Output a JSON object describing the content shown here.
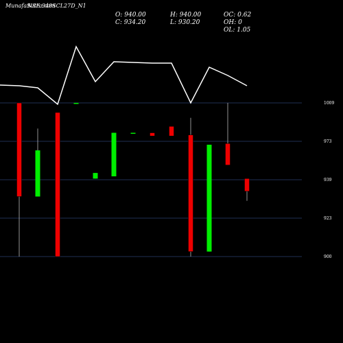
{
  "header": {
    "brand": "MunafaSutra.com",
    "symbol": "NSE 948SCL27D_N1"
  },
  "ohlc": {
    "open": "O: 940.00",
    "high": "H: 940.00",
    "oc": "OC: 0.62",
    "close": "C: 934.20",
    "low": "L: 930.20",
    "oh": "OH: 0",
    "ol": "OL: 1.05"
  },
  "colors": {
    "up": "#00ee00",
    "down": "#ee0000",
    "grid": "#1f2f55",
    "line": "#ffffff"
  },
  "chart_data": {
    "type": "candlestick",
    "y_ticks": [
      "1009",
      "973",
      "939",
      "923",
      "900"
    ],
    "ylim": [
      900,
      1009
    ],
    "grid": true,
    "candles": [
      {
        "open": 1009,
        "close": 932,
        "high": 1009,
        "low": 900,
        "direction": "down"
      },
      {
        "open": 932,
        "close": 965,
        "high": 985,
        "low": 932,
        "direction": "up"
      },
      {
        "open": 1000,
        "close": 900,
        "high": 1000,
        "low": 900,
        "direction": "down"
      },
      {
        "open": 1009,
        "close": 1009,
        "high": 1009,
        "low": 1009,
        "direction": "up"
      },
      {
        "open": 940,
        "close": 945,
        "high": 945,
        "low": 940,
        "direction": "up"
      },
      {
        "open": 942,
        "close": 981,
        "high": 981,
        "low": 942,
        "direction": "up"
      },
      {
        "open": 981,
        "close": 981,
        "high": 981,
        "low": 981,
        "direction": "up"
      },
      {
        "open": 981,
        "close": 978,
        "high": 981,
        "low": 978,
        "direction": "down"
      },
      {
        "open": 987,
        "close": 978,
        "high": 987,
        "low": 978,
        "direction": "down"
      },
      {
        "open": 979,
        "close": 903,
        "high": 995,
        "low": 900,
        "direction": "down"
      },
      {
        "open": 903,
        "close": 970,
        "high": 970,
        "low": 903,
        "direction": "up"
      },
      {
        "open": 971,
        "close": 952,
        "high": 1009,
        "low": 952,
        "direction": "down"
      },
      {
        "open": 940,
        "close": 934.2,
        "high": 940,
        "low": 930.2,
        "direction": "down"
      }
    ],
    "volume_line": [
      125,
      128,
      152,
      68,
      119,
      90,
      91,
      92,
      92,
      150,
      98,
      110,
      125
    ]
  }
}
